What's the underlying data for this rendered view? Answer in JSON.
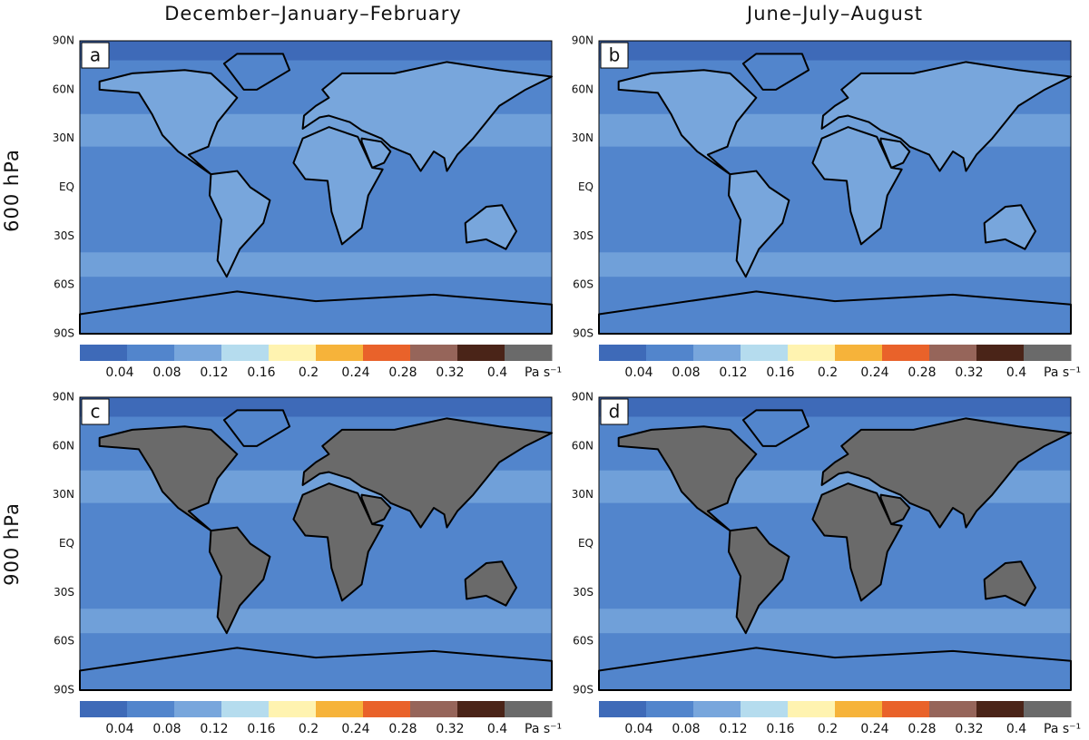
{
  "columns": [
    "December–January–February",
    "June–July–August"
  ],
  "rows": [
    "600 hPa",
    "900 hPa"
  ],
  "panels": [
    {
      "label": "a"
    },
    {
      "label": "b"
    },
    {
      "label": "c"
    },
    {
      "label": "d"
    }
  ],
  "lat_labels": [
    "90N",
    "60N",
    "30N",
    "EQ",
    "30S",
    "60S",
    "90S"
  ],
  "colorbar": {
    "colors": [
      "#3e6ab8",
      "#5285cc",
      "#78a6dc",
      "#b5dcee",
      "#fff3b0",
      "#f6b33a",
      "#e9622a",
      "#96655a",
      "#4a2418",
      "#6a6a6a"
    ],
    "ticks": [
      0.04,
      0.08,
      0.12,
      0.16,
      0.2,
      0.24,
      0.28,
      0.32,
      0.4
    ],
    "unit": "Pa s⁻¹"
  }
}
